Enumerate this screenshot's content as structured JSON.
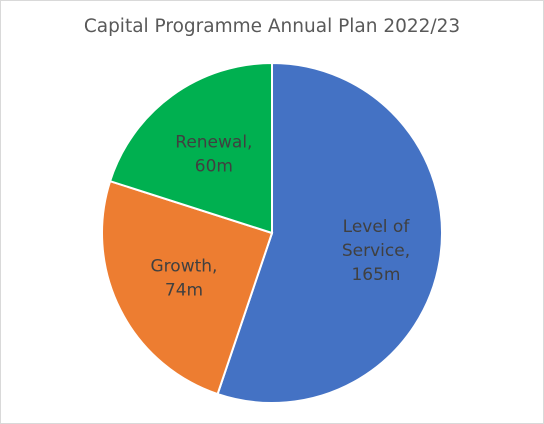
{
  "chart_data": {
    "type": "pie",
    "title": "Capital Programme Annual Plan 2022/23",
    "unit": "m",
    "slices": [
      {
        "label": "Level of Service, 165m",
        "category": "Level of Service",
        "value": 165,
        "color": "#4472c4",
        "label_lines": [
          "Level of",
          "Service,",
          "165m"
        ]
      },
      {
        "label": "Growth, 74m",
        "category": "Growth",
        "value": 74,
        "color": "#ed7d31",
        "label_lines": [
          "Growth,",
          "74m"
        ]
      },
      {
        "label": "Renewal, 60m",
        "category": "Renewal",
        "value": 60,
        "color": "#00b050",
        "label_lines": [
          "Renewal,",
          "60m"
        ]
      }
    ],
    "start": "12 o'clock",
    "direction": "clockwise",
    "legend": "none"
  }
}
